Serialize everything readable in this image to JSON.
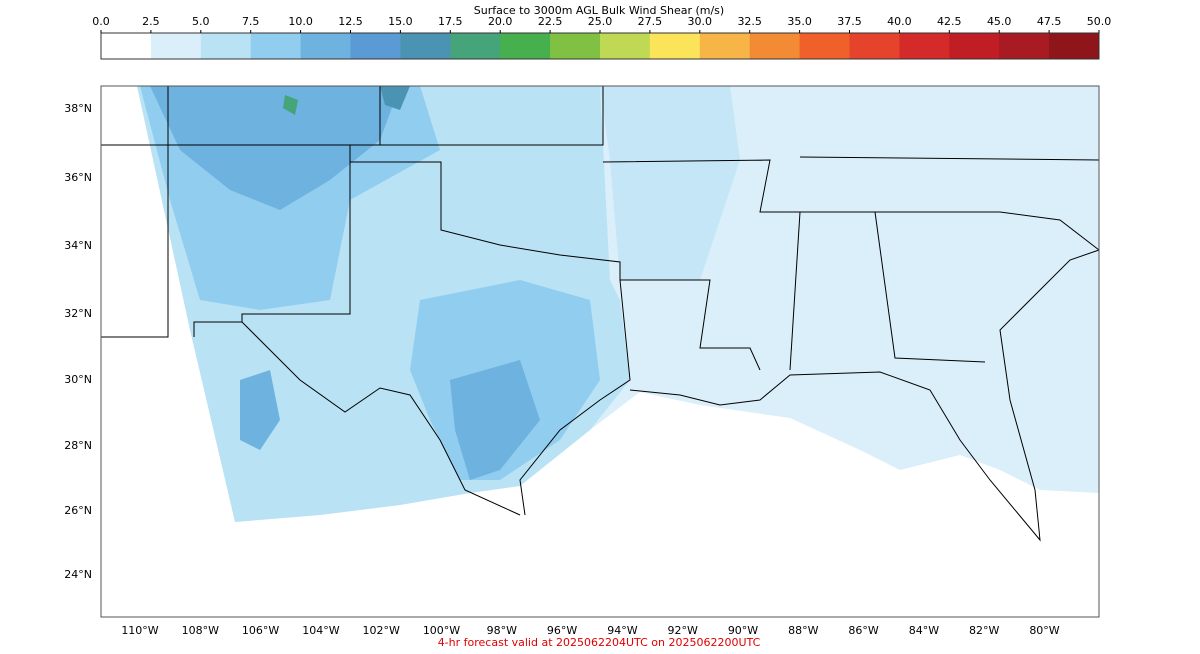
{
  "colorbar": {
    "title": "Surface to 3000m AGL Bulk Wind Shear (m/s)",
    "ticks": [
      {
        "value": 0,
        "label": "0.0"
      },
      {
        "value": 2.5,
        "label": "2.5"
      },
      {
        "value": 5,
        "label": "5.0"
      },
      {
        "value": 7.5,
        "label": "7.5"
      },
      {
        "value": 10,
        "label": "10.0"
      },
      {
        "value": 12.5,
        "label": "12.5"
      },
      {
        "value": 15,
        "label": "15.0"
      },
      {
        "value": 17.5,
        "label": "17.5"
      },
      {
        "value": 20,
        "label": "20.0"
      },
      {
        "value": 22.5,
        "label": "22.5"
      },
      {
        "value": 25,
        "label": "25.0"
      },
      {
        "value": 27.5,
        "label": "27.5"
      },
      {
        "value": 30,
        "label": "30.0"
      },
      {
        "value": 32.5,
        "label": "32.5"
      },
      {
        "value": 35,
        "label": "35.0"
      },
      {
        "value": 37.5,
        "label": "37.5"
      },
      {
        "value": 40,
        "label": "40.0"
      },
      {
        "value": 42.5,
        "label": "42.5"
      },
      {
        "value": 45,
        "label": "45.0"
      },
      {
        "value": 47.5,
        "label": "47.5"
      },
      {
        "value": 50,
        "label": "50.0"
      }
    ],
    "colors": [
      "#ffffff",
      "#dbeffa",
      "#b9e2f5",
      "#91cdef",
      "#6eb2e0",
      "#5a9bd5",
      "#4a93b2",
      "#45a47a",
      "#45b04d",
      "#80c143",
      "#c0d955",
      "#fbe45a",
      "#f8b547",
      "#f38b35",
      "#ef602a",
      "#e5432b",
      "#d42a29",
      "#c01e24",
      "#a81b22",
      "#8e161b"
    ]
  },
  "map": {
    "lat_labels": [
      "38°N",
      "36°N",
      "34°N",
      "32°N",
      "30°N",
      "28°N",
      "26°N",
      "24°N"
    ],
    "lon_labels": [
      "110°W",
      "108°W",
      "106°W",
      "104°W",
      "102°W",
      "100°W",
      "98°W",
      "96°W",
      "94°W",
      "92°W",
      "90°W",
      "88°W",
      "86°W",
      "84°W",
      "82°W",
      "80°W"
    ]
  },
  "footer": "4-hr forecast valid at 2025062204UTC on 2025062200UTC"
}
